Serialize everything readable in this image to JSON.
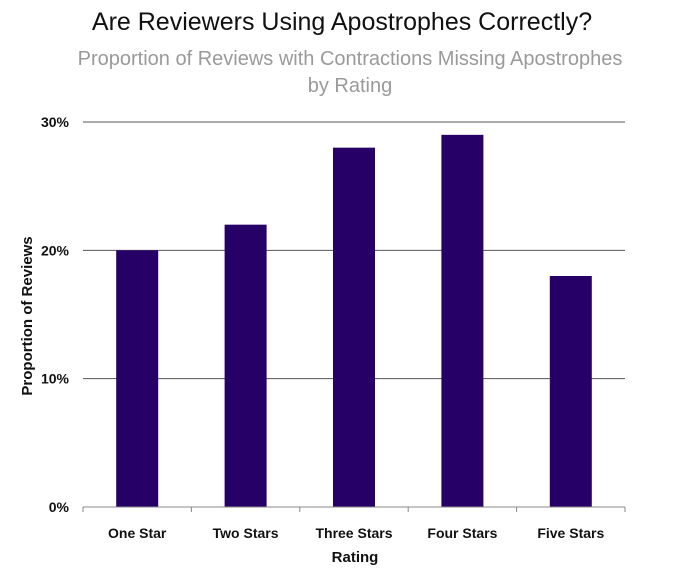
{
  "chart_data": {
    "type": "bar",
    "title": "Are Reviewers Using Apostrophes Correctly?",
    "subtitle": "Proportion of Reviews with Contractions Missing Apostrophes by Rating",
    "xlabel": "Rating",
    "ylabel": "Proportion of Reviews",
    "categories": [
      "One Star",
      "Two Stars",
      "Three Stars",
      "Four Stars",
      "Five Stars"
    ],
    "values": [
      0.2,
      0.22,
      0.28,
      0.29,
      0.18
    ],
    "ylim": [
      0,
      0.3
    ],
    "yticks": [
      0,
      0.1,
      0.2,
      0.3
    ],
    "ytick_labels": [
      "0%",
      "10%",
      "20%",
      "30%"
    ],
    "grid": true,
    "legend": "none",
    "colors": {
      "bar": "#260066",
      "grid": "#555555",
      "axis": "#888888",
      "title": "#111111",
      "subtitle": "#9a9a9a"
    }
  }
}
